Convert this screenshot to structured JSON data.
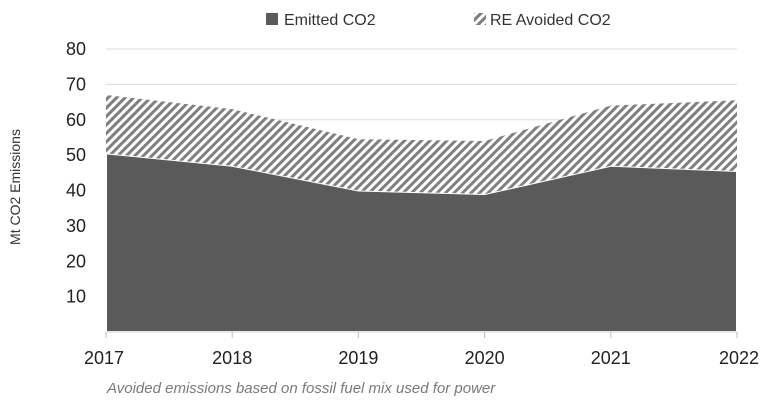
{
  "chart_data": {
    "type": "area",
    "stacked": true,
    "x": [
      "2017",
      "2018",
      "2019",
      "2020",
      "2021",
      "2022"
    ],
    "series": [
      {
        "name": "Emitted CO2",
        "values": [
          50.5,
          47,
          40,
          39,
          47,
          45.5
        ],
        "color": "#5a5a5a",
        "fill": "solid"
      },
      {
        "name": "RE Avoided CO2",
        "values": [
          16.5,
          16,
          14.5,
          15,
          17,
          20
        ],
        "color": "#7f7f7f",
        "fill": "diagonal-hatch"
      }
    ],
    "ylabel": "Mt CO2 Emissions",
    "yticks": [
      "10",
      "20",
      "30",
      "40",
      "50",
      "60",
      "70",
      "80"
    ],
    "ylim": [
      0,
      80
    ],
    "legend_position": "top",
    "grid": "horizontal",
    "note": "Avoided emissions based on fossil fuel mix used for power"
  }
}
